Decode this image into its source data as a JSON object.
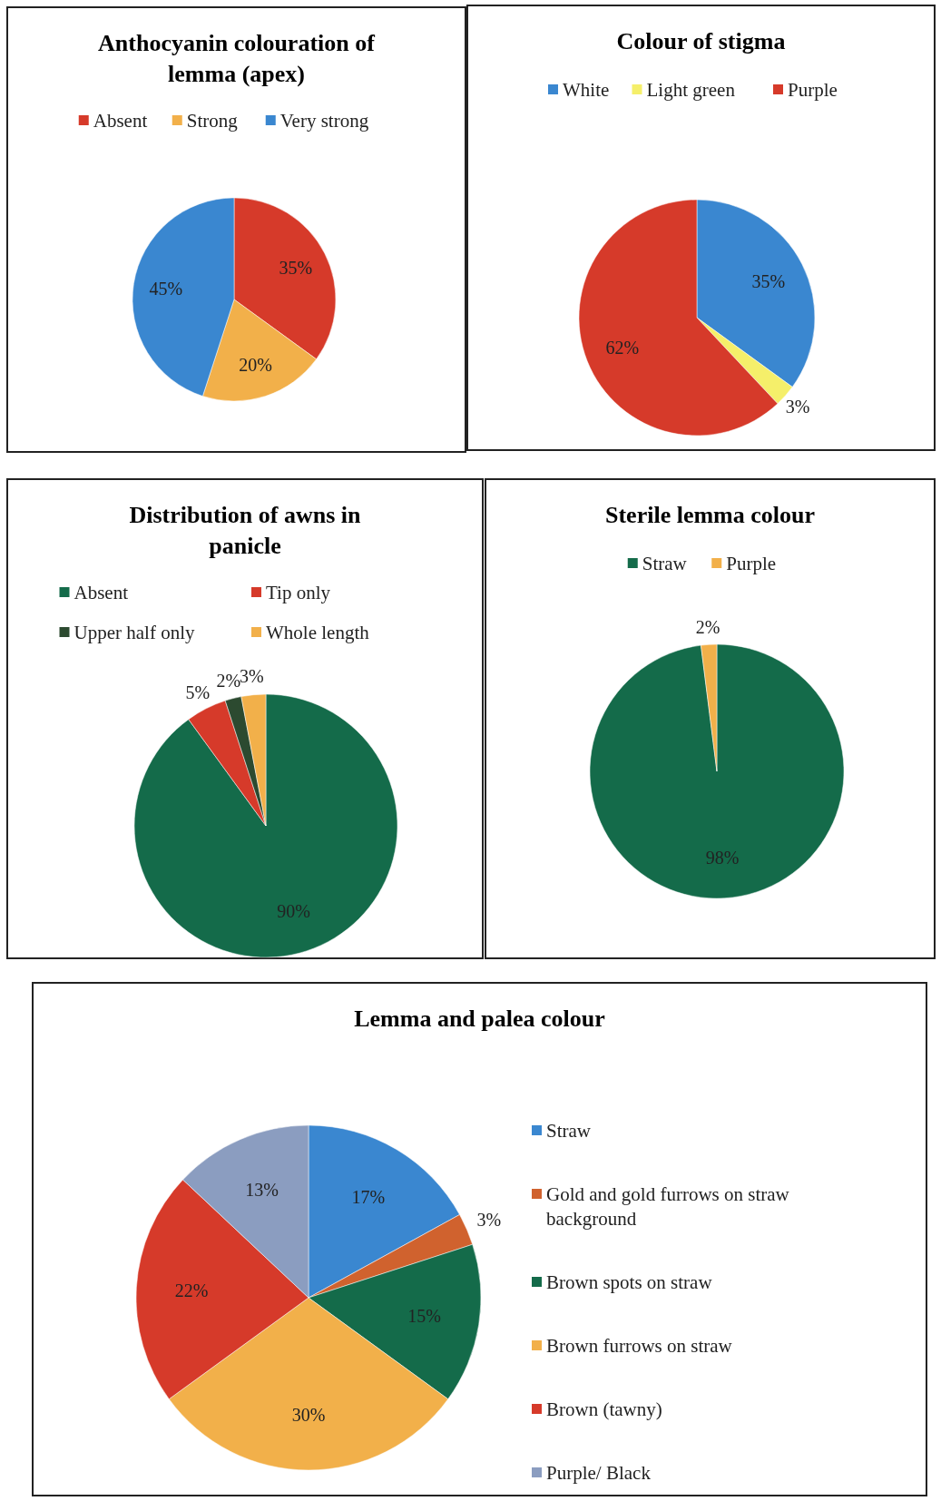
{
  "chart_data": [
    {
      "type": "pie",
      "title": "Anthocyanin colouration of lemma (apex)",
      "categories": [
        "Absent",
        "Strong",
        "Very strong"
      ],
      "values": [
        35,
        20,
        45
      ],
      "colors": [
        "#d63a2a",
        "#f2b04a",
        "#3a87d0"
      ],
      "legend": "top",
      "value_labels": [
        "35%",
        "20%",
        "45%"
      ]
    },
    {
      "type": "pie",
      "title": "Colour of stigma",
      "categories": [
        "White",
        "Light green",
        "Purple"
      ],
      "values": [
        35,
        3,
        62
      ],
      "colors": [
        "#3a87d0",
        "#f5ef6a",
        "#d63a2a"
      ],
      "legend": "top",
      "value_labels": [
        "35%",
        "3%",
        "62%"
      ]
    },
    {
      "type": "pie",
      "title": "Distribution  of awns in panicle",
      "categories": [
        "Absent",
        "Tip only",
        "Upper half only",
        "Whole length"
      ],
      "values": [
        90,
        5,
        2,
        3
      ],
      "colors": [
        "#146b4a",
        "#d63a2a",
        "#2c4a30",
        "#f2b04a"
      ],
      "legend": "top",
      "value_labels": [
        "90%",
        "5%",
        "2%",
        "3%"
      ]
    },
    {
      "type": "pie",
      "title": "Sterile lemma colour",
      "categories": [
        "Straw",
        "Purple"
      ],
      "values": [
        98,
        2
      ],
      "colors": [
        "#146b4a",
        "#f2b04a"
      ],
      "legend": "top",
      "value_labels": [
        "98%",
        "2%"
      ]
    },
    {
      "type": "pie",
      "title": "Lemma and palea colour",
      "categories": [
        "Straw",
        "Gold and gold furrows on straw background",
        "Brown spots on straw",
        "Brown furrows on straw",
        "Brown (tawny)",
        "Purple/ Black"
      ],
      "values": [
        17,
        3,
        15,
        30,
        22,
        13
      ],
      "colors": [
        "#3a87d0",
        "#d0622e",
        "#146b4a",
        "#f2b04a",
        "#d63a2a",
        "#8b9dc0"
      ],
      "legend": "right",
      "value_labels": [
        "17%",
        "3%",
        "15%",
        "30%",
        "22%",
        "13%"
      ]
    }
  ]
}
